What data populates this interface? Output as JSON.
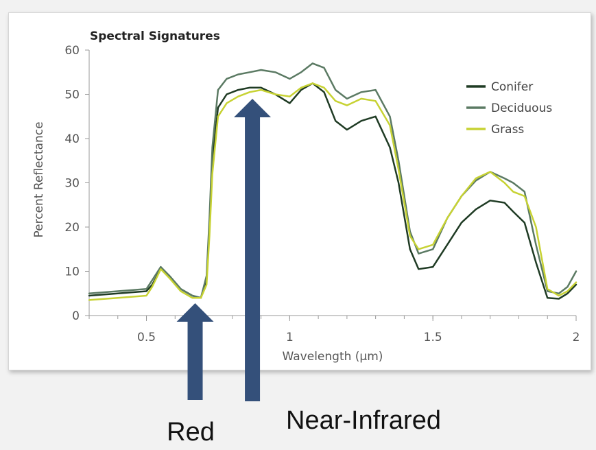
{
  "chart_data": {
    "type": "line",
    "title": "Spectral Signatures",
    "xlabel": "Wavelength (µm)",
    "ylabel": "Percent Reflectance",
    "xlim": [
      0.3,
      2.0
    ],
    "ylim": [
      0,
      60
    ],
    "xticks": [
      0.5,
      1,
      1.5,
      2
    ],
    "xtick_labels": [
      "0.5",
      "1",
      "1.5",
      "2"
    ],
    "yticks": [
      0,
      10,
      20,
      30,
      40,
      50,
      60
    ],
    "ytick_labels": [
      "0",
      "10",
      "20",
      "30",
      "40",
      "50",
      "60"
    ],
    "grid": false,
    "legend_position": "top-right",
    "series": [
      {
        "name": "Conifer",
        "color": "#1f3b24",
        "x": [
          0.3,
          0.4,
          0.5,
          0.52,
          0.55,
          0.58,
          0.62,
          0.66,
          0.69,
          0.71,
          0.72,
          0.73,
          0.75,
          0.78,
          0.82,
          0.86,
          0.9,
          0.95,
          1.0,
          1.04,
          1.08,
          1.12,
          1.16,
          1.2,
          1.25,
          1.3,
          1.35,
          1.38,
          1.42,
          1.45,
          1.5,
          1.55,
          1.6,
          1.65,
          1.7,
          1.75,
          1.78,
          1.82,
          1.86,
          1.9,
          1.94,
          1.97,
          2.0
        ],
        "y": [
          4.5,
          5.0,
          5.5,
          7.0,
          10.5,
          9.0,
          6.0,
          4.5,
          4.0,
          8.0,
          20.0,
          35.0,
          47.0,
          50.0,
          51.0,
          51.5,
          51.5,
          50.0,
          48.0,
          51.0,
          52.5,
          50.5,
          44.0,
          42.0,
          44.0,
          45.0,
          38.0,
          30.0,
          15.0,
          10.5,
          11.0,
          16.0,
          21.0,
          24.0,
          26.0,
          25.5,
          23.5,
          21.0,
          12.0,
          4.0,
          3.8,
          5.0,
          7.0
        ]
      },
      {
        "name": "Deciduous",
        "color": "#5b7a63",
        "x": [
          0.3,
          0.4,
          0.5,
          0.52,
          0.55,
          0.58,
          0.62,
          0.66,
          0.69,
          0.71,
          0.72,
          0.73,
          0.75,
          0.78,
          0.82,
          0.86,
          0.9,
          0.95,
          1.0,
          1.04,
          1.08,
          1.12,
          1.16,
          1.2,
          1.25,
          1.3,
          1.35,
          1.38,
          1.42,
          1.45,
          1.5,
          1.55,
          1.6,
          1.65,
          1.7,
          1.75,
          1.78,
          1.82,
          1.86,
          1.9,
          1.94,
          1.97,
          2.0
        ],
        "y": [
          5.0,
          5.5,
          6.0,
          8.0,
          11.0,
          9.0,
          6.0,
          4.5,
          4.0,
          9.0,
          22.0,
          38.0,
          51.0,
          53.5,
          54.5,
          55.0,
          55.5,
          55.0,
          53.5,
          55.0,
          57.0,
          56.0,
          51.0,
          49.0,
          50.5,
          51.0,
          45.0,
          35.0,
          19.0,
          14.0,
          15.0,
          22.0,
          27.0,
          30.5,
          32.5,
          31.0,
          30.0,
          28.0,
          16.0,
          5.5,
          5.0,
          6.5,
          10.0
        ]
      },
      {
        "name": "Grass",
        "color": "#c7d233",
        "x": [
          0.3,
          0.4,
          0.5,
          0.52,
          0.55,
          0.58,
          0.62,
          0.66,
          0.69,
          0.71,
          0.72,
          0.73,
          0.75,
          0.78,
          0.82,
          0.86,
          0.9,
          0.95,
          1.0,
          1.04,
          1.08,
          1.12,
          1.16,
          1.2,
          1.25,
          1.3,
          1.35,
          1.38,
          1.42,
          1.45,
          1.5,
          1.55,
          1.6,
          1.65,
          1.7,
          1.75,
          1.78,
          1.82,
          1.86,
          1.9,
          1.94,
          1.97,
          2.0
        ],
        "y": [
          3.5,
          4.0,
          4.5,
          6.5,
          10.5,
          8.5,
          5.5,
          4.0,
          4.0,
          7.0,
          18.0,
          32.0,
          45.0,
          48.0,
          49.5,
          50.5,
          51.0,
          50.0,
          49.5,
          51.5,
          52.5,
          51.5,
          48.5,
          47.5,
          49.0,
          48.5,
          43.0,
          33.0,
          18.0,
          15.0,
          16.0,
          22.0,
          27.0,
          31.0,
          32.5,
          30.0,
          28.0,
          27.0,
          20.0,
          6.0,
          4.5,
          5.5,
          7.5
        ]
      }
    ],
    "annotations": [
      {
        "label": "Red",
        "x": 0.67,
        "color": "#34507a",
        "font_size": 38
      },
      {
        "label": "Near-Infrared",
        "x": 0.87,
        "color": "#34507a",
        "font_size": 38
      }
    ]
  }
}
